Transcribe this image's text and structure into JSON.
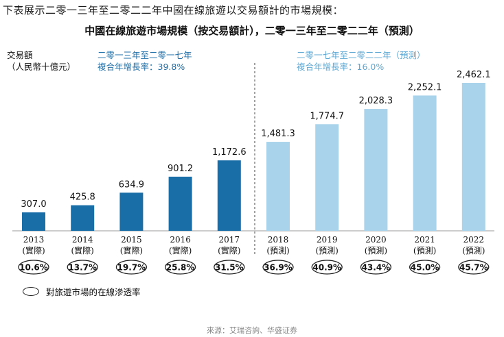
{
  "header": {
    "intro": "下表展示二零一三年至二零二二年中國在線旅遊以交易額計的市場規模：",
    "title": "中國在線旅遊市場規模（按交易額計），二零一三年至二零二二年（預測）"
  },
  "axis": {
    "ylabel": "交易額",
    "yunit": "（人民幣十億元）"
  },
  "periods": {
    "actual": {
      "label": "二零一三年至二零一七年",
      "cagr": "複合年增長率：39.8%"
    },
    "forecast": {
      "label": "二零一七年至二零二二年（預測）",
      "cagr": "複合年增長率：16.0%"
    }
  },
  "legend": {
    "label": "對旅遊市場的在線滲透率"
  },
  "source": "來源：艾瑞咨詢、华盛证券",
  "colors": {
    "actual": "#1a6ea8",
    "forecast": "#a9d3ea",
    "divider": "#444444"
  },
  "chart_data": {
    "type": "bar",
    "title": "中國在線旅遊市場規模（按交易額計），二零一三年至二零二二年（預測）",
    "ylabel": "交易額（人民幣十億元）",
    "ylim": [
      0,
      2600
    ],
    "categories": [
      "2013",
      "2014",
      "2015",
      "2016",
      "2017",
      "2018",
      "2019",
      "2020",
      "2021",
      "2022"
    ],
    "status": [
      "(實際)",
      "(實際)",
      "(實際)",
      "(實際)",
      "(實際)",
      "(預測)",
      "(預測)",
      "(預測)",
      "(預測)",
      "(預測)"
    ],
    "values": [
      307.0,
      425.8,
      634.9,
      901.2,
      1172.6,
      1481.3,
      1774.7,
      2028.3,
      2252.1,
      2462.1
    ],
    "value_labels": [
      "307.0",
      "425.8",
      "634.9",
      "901.2",
      "1,172.6",
      "1,481.3",
      "1,774.7",
      "2,028.3",
      "2,252.1",
      "2,462.1"
    ],
    "penetration": [
      "10.6%",
      "13.7%",
      "19.7%",
      "25.8%",
      "31.5%",
      "36.9%",
      "40.9%",
      "43.4%",
      "45.0%",
      "45.7%"
    ],
    "grid": false
  }
}
